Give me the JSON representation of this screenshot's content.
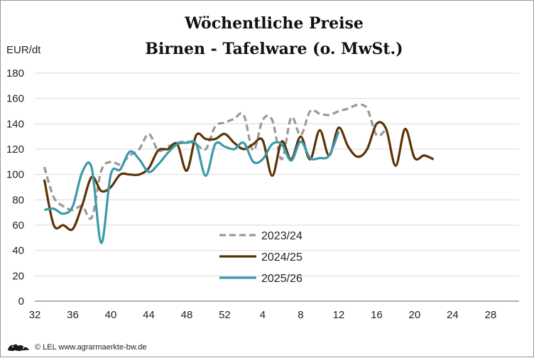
{
  "chart_data": {
    "type": "line",
    "title": "Wöchentliche Preise",
    "subtitle": "Birnen - Tafelware (o. MwSt.)",
    "ylabel": "EUR/dt",
    "xlabel": "",
    "ylim": [
      0,
      180
    ],
    "yticks": [
      0,
      20,
      40,
      60,
      80,
      100,
      120,
      140,
      160,
      180
    ],
    "xticks": [
      {
        "pos": 0,
        "label": "32"
      },
      {
        "pos": 4,
        "label": "36"
      },
      {
        "pos": 8,
        "label": "40"
      },
      {
        "pos": 12,
        "label": "44"
      },
      {
        "pos": 16,
        "label": "48"
      },
      {
        "pos": 20,
        "label": "52"
      },
      {
        "pos": 24,
        "label": "4"
      },
      {
        "pos": 28,
        "label": "8"
      },
      {
        "pos": 32,
        "label": "12"
      },
      {
        "pos": 36,
        "label": "16"
      },
      {
        "pos": 40,
        "label": "20"
      },
      {
        "pos": 44,
        "label": "24"
      },
      {
        "pos": 48,
        "label": "28"
      }
    ],
    "xlim": [
      0,
      51
    ],
    "grid": true,
    "legend_position": "bottom-center",
    "series": [
      {
        "name": "2023/24",
        "color": "#999999",
        "style": "dashed",
        "points": [
          [
            1,
            106
          ],
          [
            2,
            82
          ],
          [
            3,
            75
          ],
          [
            4,
            72
          ],
          [
            5,
            75
          ],
          [
            6,
            66
          ],
          [
            7,
            103
          ],
          [
            8,
            110
          ],
          [
            9,
            108
          ],
          [
            10,
            115
          ],
          [
            11,
            120
          ],
          [
            12,
            132
          ],
          [
            13,
            119
          ],
          [
            14,
            122
          ],
          [
            15,
            125
          ],
          [
            16,
            126
          ],
          [
            17,
            124
          ],
          [
            18,
            120
          ],
          [
            19,
            138
          ],
          [
            20,
            141
          ],
          [
            21,
            144
          ],
          [
            22,
            147
          ],
          [
            23,
            119
          ],
          [
            24,
            143
          ],
          [
            25,
            143
          ],
          [
            26,
            112
          ],
          [
            27,
            145
          ],
          [
            28,
            131
          ],
          [
            29,
            150
          ],
          [
            30,
            148
          ],
          [
            31,
            147
          ],
          [
            32,
            150
          ],
          [
            33,
            152
          ],
          [
            34,
            155
          ],
          [
            35,
            152
          ],
          [
            36,
            131
          ],
          [
            37,
            136
          ]
        ]
      },
      {
        "name": "2024/25",
        "color": "#5c3306",
        "style": "solid",
        "points": [
          [
            1,
            96
          ],
          [
            2,
            60
          ],
          [
            3,
            60
          ],
          [
            4,
            57
          ],
          [
            5,
            76
          ],
          [
            6,
            98
          ],
          [
            7,
            87
          ],
          [
            8,
            90
          ],
          [
            9,
            100
          ],
          [
            10,
            100
          ],
          [
            11,
            100
          ],
          [
            12,
            105
          ],
          [
            13,
            119
          ],
          [
            14,
            120
          ],
          [
            15,
            124
          ],
          [
            16,
            103
          ],
          [
            17,
            131
          ],
          [
            18,
            128
          ],
          [
            19,
            128
          ],
          [
            20,
            132
          ],
          [
            21,
            125
          ],
          [
            22,
            120
          ],
          [
            23,
            124
          ],
          [
            24,
            127
          ],
          [
            25,
            99
          ],
          [
            26,
            126
          ],
          [
            27,
            112
          ],
          [
            28,
            130
          ],
          [
            29,
            112
          ],
          [
            30,
            135
          ],
          [
            31,
            115
          ],
          [
            32,
            137
          ],
          [
            33,
            122
          ],
          [
            34,
            114
          ],
          [
            35,
            120
          ],
          [
            36,
            140
          ],
          [
            37,
            136
          ],
          [
            38,
            107
          ],
          [
            39,
            136
          ],
          [
            40,
            113
          ],
          [
            41,
            115
          ],
          [
            42,
            112
          ]
        ]
      },
      {
        "name": "2025/26",
        "color": "#3b9aa8",
        "style": "solid",
        "points": [
          [
            1,
            72
          ],
          [
            2,
            73
          ],
          [
            3,
            69
          ],
          [
            4,
            75
          ],
          [
            5,
            102
          ],
          [
            6,
            105
          ],
          [
            7,
            46
          ],
          [
            8,
            100
          ],
          [
            9,
            104
          ],
          [
            10,
            118
          ],
          [
            11,
            112
          ],
          [
            12,
            102
          ],
          [
            13,
            108
          ],
          [
            14,
            117
          ],
          [
            15,
            124
          ],
          [
            16,
            125
          ],
          [
            17,
            124
          ],
          [
            18,
            99
          ],
          [
            19,
            124
          ],
          [
            20,
            122
          ],
          [
            21,
            120
          ],
          [
            22,
            125
          ],
          [
            23,
            110
          ],
          [
            24,
            112
          ],
          [
            25,
            124
          ],
          [
            26,
            124
          ],
          [
            27,
            111
          ],
          [
            28,
            126
          ],
          [
            29,
            113
          ],
          [
            30,
            113
          ],
          [
            31,
            115
          ],
          [
            32,
            134
          ]
        ]
      }
    ]
  },
  "footer": {
    "credit": "© LEL www.agrarmaerkte-bw.de",
    "logo_icon": "bw-lions-logo-icon"
  }
}
